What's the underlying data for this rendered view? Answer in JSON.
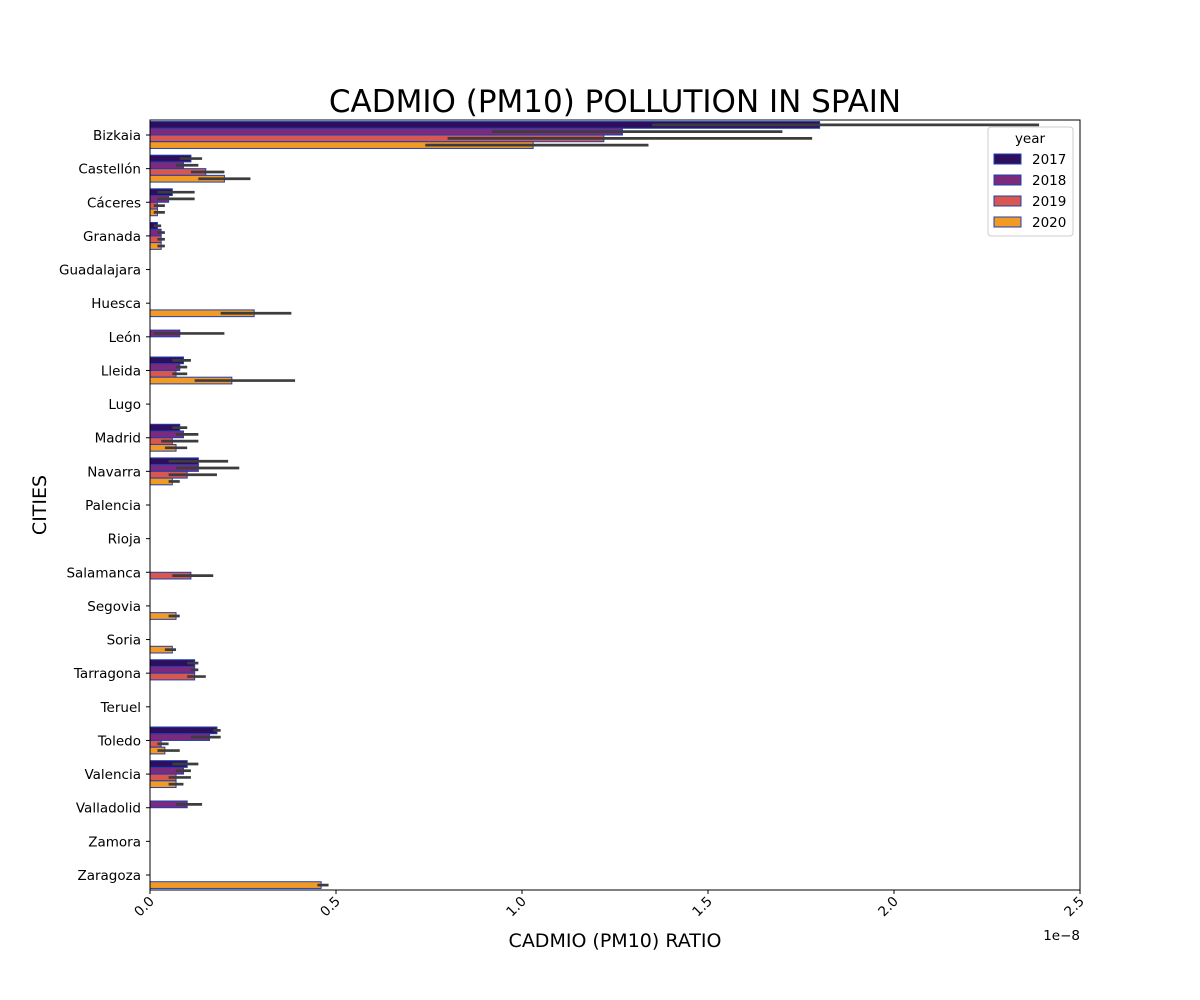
{
  "chart_data": {
    "type": "bar",
    "orientation": "horizontal",
    "title": "CADMIO (PM10) POLLUTION IN SPAIN",
    "xlabel": "CADMIO (PM10) RATIO",
    "ylabel": "CITIES",
    "x_offset_label": "1e−8",
    "xlim": [
      0,
      2.5
    ],
    "x_ticks": [
      "0.0",
      "0.5",
      "1.0",
      "1.5",
      "2.0",
      "2.5"
    ],
    "grid": false,
    "legend": {
      "title": "year",
      "position": "top-right"
    },
    "categories": [
      "Bizkaia",
      "Castellón",
      "Cáceres",
      "Granada",
      "Guadalajara",
      "Huesca",
      "León",
      "Lleida",
      "Lugo",
      "Madrid",
      "Navarra",
      "Palencia",
      "Rioja",
      "Salamanca",
      "Segovia",
      "Soria",
      "Tarragona",
      "Teruel",
      "Toledo",
      "Valencia",
      "Valladolid",
      "Zamora",
      "Zaragoza"
    ],
    "series": [
      {
        "name": "2017",
        "color": "#2d0f5e",
        "edge": "#1f3fb0",
        "values": [
          1.8,
          0.11,
          0.06,
          0.02,
          null,
          null,
          null,
          0.09,
          null,
          0.08,
          0.13,
          null,
          null,
          null,
          null,
          null,
          0.12,
          null,
          0.18,
          0.1,
          null,
          null,
          null
        ],
        "error_low": [
          1.35,
          0.08,
          0.02,
          0.01,
          null,
          null,
          null,
          0.06,
          null,
          0.06,
          0.05,
          null,
          null,
          null,
          null,
          null,
          0.1,
          null,
          0.17,
          0.06,
          null,
          null,
          null
        ],
        "error_high": [
          2.39,
          0.14,
          0.12,
          0.03,
          null,
          null,
          null,
          0.11,
          null,
          0.1,
          0.21,
          null,
          null,
          null,
          null,
          null,
          0.13,
          null,
          0.19,
          0.13,
          null,
          null,
          null
        ]
      },
      {
        "name": "2018",
        "color": "#7b2a7e",
        "edge": "#1f3fb0",
        "values": [
          1.27,
          0.09,
          0.05,
          0.03,
          null,
          null,
          0.08,
          0.08,
          null,
          0.09,
          0.13,
          null,
          null,
          null,
          null,
          null,
          0.12,
          null,
          0.16,
          0.09,
          0.1,
          null,
          null
        ],
        "error_low": [
          0.92,
          0.07,
          0.02,
          0.02,
          null,
          null,
          0.01,
          0.07,
          null,
          0.07,
          0.07,
          null,
          null,
          null,
          null,
          null,
          0.11,
          null,
          0.11,
          0.07,
          0.07,
          null,
          null
        ],
        "error_high": [
          1.7,
          0.13,
          0.12,
          0.04,
          null,
          null,
          0.2,
          0.1,
          null,
          0.13,
          0.24,
          null,
          null,
          null,
          null,
          null,
          0.13,
          null,
          0.19,
          0.11,
          0.14,
          null,
          null
        ]
      },
      {
        "name": "2019",
        "color": "#d8584f",
        "edge": "#1f3fb0",
        "values": [
          1.22,
          0.15,
          0.02,
          0.03,
          null,
          null,
          null,
          0.07,
          null,
          0.06,
          0.1,
          null,
          null,
          0.11,
          null,
          null,
          0.12,
          null,
          0.03,
          0.07,
          null,
          null,
          null
        ],
        "error_low": [
          0.8,
          0.11,
          0.01,
          0.02,
          null,
          null,
          null,
          0.06,
          null,
          0.03,
          0.05,
          null,
          null,
          0.06,
          null,
          null,
          0.1,
          null,
          0.02,
          0.05,
          null,
          null,
          null
        ],
        "error_high": [
          1.78,
          0.2,
          0.04,
          0.04,
          null,
          null,
          null,
          0.1,
          null,
          0.13,
          0.18,
          null,
          null,
          0.17,
          null,
          null,
          0.15,
          null,
          0.05,
          0.11,
          null,
          null,
          null
        ]
      },
      {
        "name": "2020",
        "color": "#f29b24",
        "edge": "#1f3fb0",
        "values": [
          1.03,
          0.2,
          0.02,
          0.03,
          null,
          0.28,
          null,
          0.22,
          null,
          0.07,
          0.06,
          null,
          null,
          null,
          0.07,
          0.06,
          null,
          null,
          0.04,
          0.07,
          null,
          null,
          0.46
        ],
        "error_low": [
          0.74,
          0.13,
          0.01,
          0.02,
          null,
          0.19,
          null,
          0.12,
          null,
          0.04,
          0.05,
          null,
          null,
          null,
          0.05,
          0.04,
          null,
          null,
          0.02,
          0.05,
          null,
          null,
          0.45
        ],
        "error_high": [
          1.34,
          0.27,
          0.04,
          0.04,
          null,
          0.38,
          null,
          0.39,
          null,
          0.1,
          0.08,
          null,
          null,
          null,
          0.08,
          0.07,
          null,
          null,
          0.08,
          0.09,
          null,
          null,
          0.48
        ]
      }
    ]
  }
}
